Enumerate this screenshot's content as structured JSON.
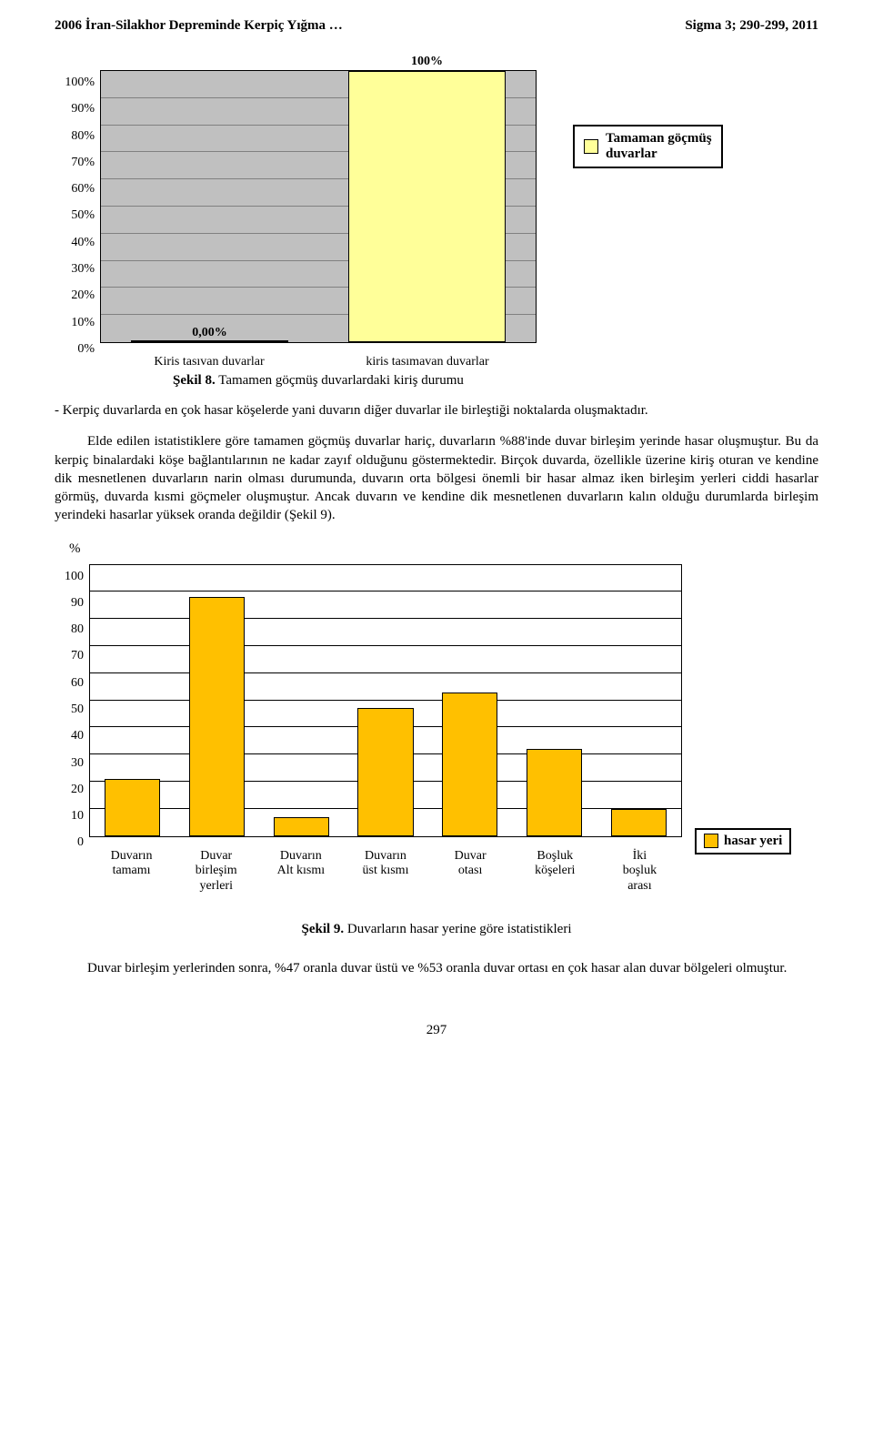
{
  "header": {
    "left": "2006 İran-Silakhor Depreminde Kerpiç Yığma …",
    "right": "Sigma 3; 290-299, 2011"
  },
  "chart1": {
    "type": "bar",
    "plot_bg": "#c0c0c0",
    "grid_color": "#808080",
    "bar_color": "#ffff99",
    "bar_border": "#000000",
    "ylim": [
      0,
      100
    ],
    "ytick_step": 10,
    "ytick_suffix": "%",
    "categories": [
      "Kiris tasıvan duvarlar",
      "kiris tasımavan duvarlar"
    ],
    "values": [
      0,
      100
    ],
    "value_labels": [
      "0,00%",
      "100%"
    ],
    "bar_width_pct": 36,
    "bar_offsets_pct": [
      25,
      75
    ],
    "caption_strong": "Şekil 8.",
    "caption_rest": " Tamamen göçmüş duvarlardaki kiriş durumu",
    "legend_swatch": "#ffff99",
    "legend_text": "Tamaman göçmüş\nduvarlar"
  },
  "text": {
    "p1": "- Kerpiç duvarlarda en çok hasar köşelerde yani duvarın diğer duvarlar ile birleştiği noktalarda oluşmaktadır.",
    "p2": "Elde edilen istatistiklere göre tamamen göçmüş duvarlar hariç, duvarların %88'inde duvar birleşim yerinde hasar oluşmuştur. Bu da kerpiç binalardaki köşe bağlantılarının ne kadar zayıf olduğunu göstermektedir. Birçok duvarda, özellikle üzerine kiriş oturan ve kendine dik mesnetlenen duvarların narin olması durumunda, duvarın orta bölgesi önemli bir hasar almaz iken birleşim yerleri ciddi hasarlar görmüş, duvarda kısmi göçmeler oluşmuştur. Ancak duvarın ve kendine dik mesnetlenen duvarların kalın olduğu durumlarda birleşim yerindeki hasarlar yüksek oranda değildir (Şekil 9).",
    "y_axis_label": "%"
  },
  "chart2": {
    "type": "bar",
    "plot_bg": "#ffffff",
    "grid_color": "#000000",
    "bar_color": "#ffc000",
    "bar_border": "#000000",
    "ylim": [
      0,
      100
    ],
    "ytick_step": 10,
    "categories": [
      "Duvarın\ntamamı",
      "Duvar\nbirleşim\nyerleri",
      "Duvarın\nAlt kısmı",
      "Duvarın\nüst kısmı",
      "Duvar\notası",
      "Boşluk\nköşeleri",
      "İki\nboşluk\narası"
    ],
    "values": [
      21,
      88,
      7,
      47,
      53,
      32,
      10
    ],
    "bar_width_pct": 9.4,
    "legend_swatch": "#ffc000",
    "legend_text": "hasar yeri",
    "caption_strong": "Şekil 9.",
    "caption_rest": " Duvarların hasar yerine göre istatistikleri"
  },
  "closing": "Duvar birleşim yerlerinden sonra, %47 oranla duvar üstü ve %53 oranla duvar ortası en çok hasar alan duvar bölgeleri olmuştur.",
  "page_number": "297"
}
